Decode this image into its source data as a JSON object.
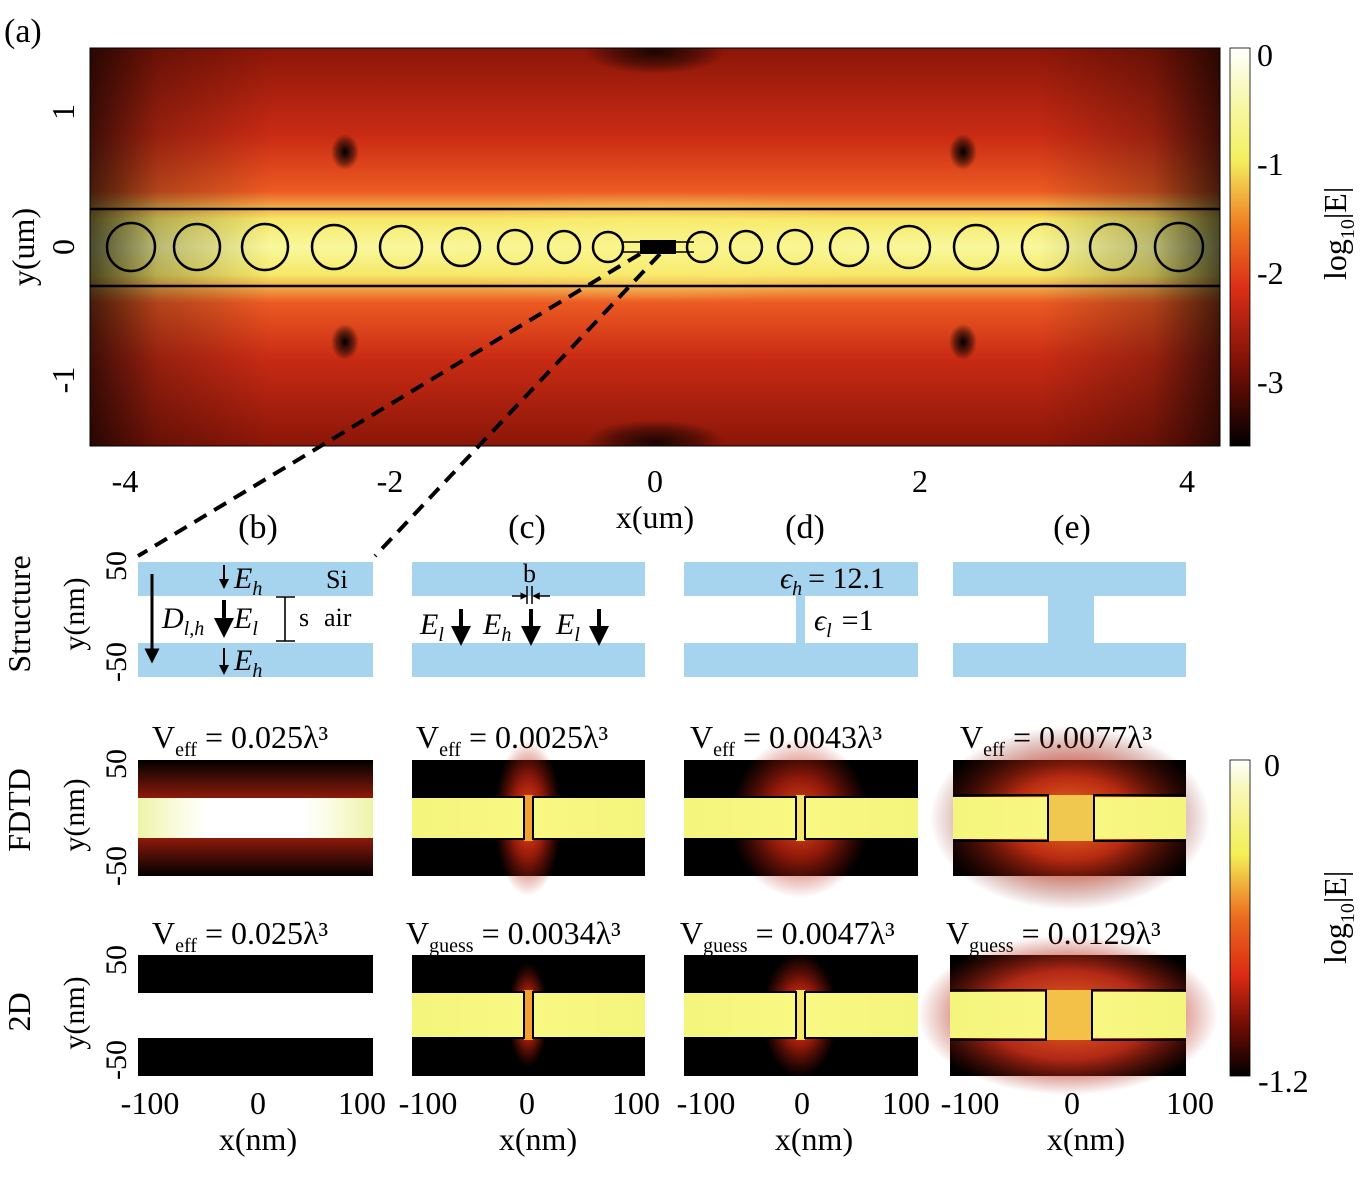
{
  "panel_labels": {
    "a": "(a)",
    "b": "(b)",
    "c": "(c)",
    "d": "(d)",
    "e": "(e)"
  },
  "panel_a": {
    "xlabel": "x(um)",
    "ylabel": "y(um)",
    "xticks": [
      "-4",
      "-2",
      "0",
      "2",
      "4"
    ],
    "yticks": [
      "1",
      "0",
      "-1"
    ],
    "colorbar": {
      "label": "log10|E|",
      "ticks": [
        "0",
        "-1",
        "-2",
        "-3"
      ]
    }
  },
  "row_labels": {
    "structure": "Structure",
    "fdtd": "FDTD",
    "twod": "2D"
  },
  "small_axes": {
    "ylabel": "y(nm)",
    "yticks": [
      "50",
      "-50"
    ],
    "xlabel": "x(nm)",
    "xticks": [
      "-100",
      "0",
      "100"
    ]
  },
  "structure_b": {
    "Eh_top": "E",
    "Eh_top_sub": "h",
    "D": "D",
    "D_sub": "l,h",
    "El": "E",
    "El_sub": "l",
    "Eh_bot": "E",
    "Eh_bot_sub": "h",
    "s": "s",
    "Si": "Si",
    "air": "air"
  },
  "structure_c": {
    "b": "b",
    "El1": "E",
    "El1_sub": "l",
    "Eh": "E",
    "Eh_sub": "h",
    "El2": "E",
    "El2_sub": "l"
  },
  "structure_d": {
    "eh_sym": "ϵ",
    "eh_sub": "h",
    "eh_val": "= 12.1",
    "el_sym": "ϵ",
    "el_sub": "l",
    "el_val": "=1"
  },
  "fdtd_titles": [
    {
      "main": "V",
      "sub": "eff",
      "value": " = 0.025λ³"
    },
    {
      "main": "V",
      "sub": "eff",
      "value": " = 0.0025λ³"
    },
    {
      "main": "V",
      "sub": "eff",
      "value": " = 0.0043λ³"
    },
    {
      "main": "V",
      "sub": "eff",
      "value": " = 0.0077λ³"
    }
  ],
  "twod_titles": [
    {
      "main": "V",
      "sub": "eff",
      "value": " = 0.025λ³"
    },
    {
      "main": "V",
      "sub": "guess",
      "value": " = 0.0034λ³"
    },
    {
      "main": "V",
      "sub": "guess",
      "value": " = 0.0047λ³"
    },
    {
      "main": "V",
      "sub": "guess",
      "value": " = 0.0129λ³"
    }
  ],
  "colorbar_small": {
    "label": "log10|E|",
    "top": "0",
    "bottom": "-1.2"
  },
  "colors": {
    "si": "#a6d3ee",
    "field_bright": "#f6f890",
    "field_mid": "#e03a1c",
    "field_dark": "#000000"
  }
}
